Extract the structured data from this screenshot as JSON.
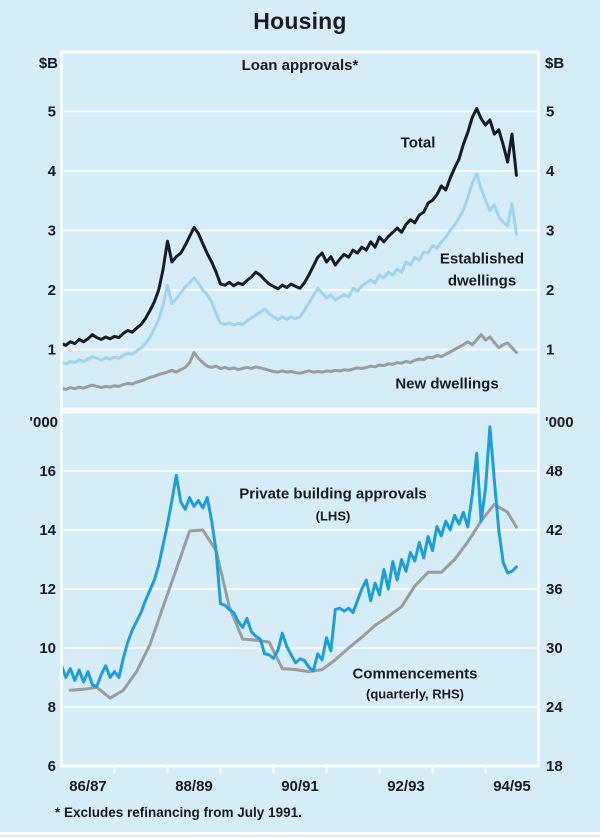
{
  "page": {
    "title": "Housing",
    "footnote": "* Excludes refinancing from July 1991.",
    "background": "#d6ecf7",
    "text_color": "#1a1a24"
  },
  "colors": {
    "total": "#1a1a24",
    "established": "#9fd4ec",
    "new_dwellings": "#9a9c9e",
    "approvals": "#1e9ed9",
    "commencements": "#9a9c9e",
    "grid": "#ffffff",
    "frame": "#ffffff"
  },
  "labels": {
    "total": "Total",
    "established_1": "Established",
    "established_2": "dwellings",
    "new_dwellings": "New dwellings",
    "approvals_1": "Private building approvals",
    "approvals_2": "(LHS)",
    "commencements_1": "Commencements",
    "commencements_2": "(quarterly, RHS)"
  },
  "x_axis": {
    "start": "Jul 1986",
    "months_span": 108,
    "tick_months": [
      12,
      24,
      36,
      48,
      60,
      72,
      84,
      96
    ],
    "labels": [
      {
        "text": "86/87",
        "month": 6
      },
      {
        "text": "88/89",
        "month": 30
      },
      {
        "text": "90/91",
        "month": 54
      },
      {
        "text": "92/93",
        "month": 78
      },
      {
        "text": "94/95",
        "month": 102
      }
    ]
  },
  "chart_data": [
    {
      "type": "line",
      "panel": "top",
      "title": "Loan approvals*",
      "unit_left": "$B",
      "unit_right": "$B",
      "ylim": [
        0,
        6
      ],
      "yticks": [
        1,
        2,
        3,
        4,
        5
      ],
      "grid": true,
      "x_start": "Jul 1986",
      "frequency": "monthly",
      "series": [
        {
          "name": "New dwellings",
          "color": "new_dwellings",
          "axis": "left",
          "values": [
            0.35,
            0.33,
            0.36,
            0.34,
            0.37,
            0.35,
            0.38,
            0.4,
            0.38,
            0.36,
            0.38,
            0.37,
            0.39,
            0.38,
            0.41,
            0.43,
            0.42,
            0.45,
            0.47,
            0.5,
            0.53,
            0.55,
            0.58,
            0.6,
            0.62,
            0.65,
            0.62,
            0.66,
            0.7,
            0.78,
            0.95,
            0.85,
            0.78,
            0.72,
            0.7,
            0.72,
            0.68,
            0.7,
            0.67,
            0.69,
            0.66,
            0.68,
            0.7,
            0.68,
            0.71,
            0.69,
            0.67,
            0.65,
            0.63,
            0.62,
            0.64,
            0.62,
            0.63,
            0.61,
            0.6,
            0.62,
            0.64,
            0.62,
            0.63,
            0.62,
            0.64,
            0.63,
            0.65,
            0.64,
            0.66,
            0.65,
            0.67,
            0.69,
            0.68,
            0.7,
            0.72,
            0.71,
            0.74,
            0.73,
            0.76,
            0.75,
            0.78,
            0.77,
            0.8,
            0.78,
            0.82,
            0.84,
            0.83,
            0.87,
            0.86,
            0.9,
            0.88,
            0.92,
            0.96,
            1.0,
            1.04,
            1.08,
            1.13,
            1.08,
            1.16,
            1.25,
            1.16,
            1.21,
            1.12,
            1.03,
            1.08,
            1.11,
            1.03,
            0.95
          ]
        },
        {
          "name": "Established dwellings",
          "color": "established",
          "axis": "left",
          "values": [
            0.78,
            0.76,
            0.8,
            0.78,
            0.83,
            0.8,
            0.84,
            0.88,
            0.85,
            0.82,
            0.86,
            0.84,
            0.87,
            0.85,
            0.9,
            0.94,
            0.92,
            0.98,
            1.02,
            1.1,
            1.2,
            1.35,
            1.5,
            1.75,
            2.08,
            1.77,
            1.85,
            1.95,
            2.05,
            2.12,
            2.2,
            2.12,
            2.0,
            1.92,
            1.8,
            1.6,
            1.44,
            1.42,
            1.45,
            1.41,
            1.44,
            1.42,
            1.48,
            1.53,
            1.58,
            1.63,
            1.68,
            1.6,
            1.55,
            1.5,
            1.55,
            1.51,
            1.55,
            1.52,
            1.55,
            1.66,
            1.78,
            1.9,
            2.03,
            1.95,
            1.87,
            1.92,
            1.83,
            1.88,
            1.92,
            1.88,
            2.03,
            1.98,
            2.07,
            2.12,
            2.17,
            2.12,
            2.25,
            2.2,
            2.3,
            2.25,
            2.35,
            2.3,
            2.47,
            2.42,
            2.55,
            2.5,
            2.64,
            2.62,
            2.75,
            2.7,
            2.81,
            2.89,
            3.0,
            3.09,
            3.21,
            3.35,
            3.55,
            3.8,
            3.95,
            3.7,
            3.51,
            3.34,
            3.43,
            3.23,
            3.14,
            3.08,
            3.45,
            2.94
          ]
        },
        {
          "name": "Total",
          "color": "total",
          "axis": "left",
          "values": [
            1.1,
            1.07,
            1.13,
            1.1,
            1.17,
            1.13,
            1.18,
            1.25,
            1.2,
            1.17,
            1.21,
            1.18,
            1.22,
            1.2,
            1.27,
            1.32,
            1.29,
            1.36,
            1.42,
            1.52,
            1.65,
            1.8,
            2.0,
            2.35,
            2.82,
            2.47,
            2.56,
            2.62,
            2.75,
            2.9,
            3.05,
            2.95,
            2.78,
            2.61,
            2.47,
            2.3,
            2.1,
            2.08,
            2.13,
            2.07,
            2.12,
            2.09,
            2.16,
            2.22,
            2.3,
            2.25,
            2.17,
            2.1,
            2.06,
            2.02,
            2.08,
            2.04,
            2.1,
            2.06,
            2.03,
            2.12,
            2.25,
            2.4,
            2.55,
            2.62,
            2.47,
            2.56,
            2.42,
            2.52,
            2.6,
            2.55,
            2.67,
            2.62,
            2.72,
            2.67,
            2.81,
            2.72,
            2.89,
            2.81,
            2.9,
            2.97,
            3.04,
            2.97,
            3.1,
            3.18,
            3.13,
            3.26,
            3.31,
            3.46,
            3.51,
            3.6,
            3.75,
            3.68,
            3.88,
            4.05,
            4.2,
            4.45,
            4.65,
            4.9,
            5.05,
            4.88,
            4.77,
            4.86,
            4.62,
            4.69,
            4.44,
            4.15,
            4.62,
            3.93
          ]
        }
      ]
    },
    {
      "type": "line",
      "panel": "bottom",
      "title": "",
      "unit_left": "'000",
      "unit_right": "'000",
      "ylim_left": [
        6,
        18
      ],
      "yticks_left": [
        16,
        14,
        12,
        10,
        8,
        6
      ],
      "ylim_right": [
        18,
        54
      ],
      "yticks_right": [
        48,
        42,
        36,
        30,
        24,
        18
      ],
      "grid": true,
      "x_start": "Jul 1986",
      "series": [
        {
          "name": "Commencements (quarterly, RHS)",
          "color": "commencements",
          "axis": "right",
          "frequency": "quarterly",
          "x_months": [
            2,
            5,
            8,
            11,
            14,
            17,
            20,
            23,
            26,
            29,
            32,
            35,
            38,
            41,
            44,
            47,
            50,
            53,
            56,
            59,
            62,
            65,
            68,
            71,
            74,
            77,
            80,
            83,
            86,
            89,
            92,
            95,
            98,
            101,
            103
          ],
          "values": [
            25.7,
            25.8,
            26.0,
            24.9,
            25.7,
            27.6,
            30.3,
            34.2,
            38.0,
            41.9,
            42.0,
            39.9,
            34.2,
            30.9,
            30.8,
            30.6,
            27.9,
            27.8,
            27.6,
            27.8,
            28.8,
            30.0,
            31.1,
            32.3,
            33.2,
            34.2,
            36.3,
            37.7,
            37.7,
            39.0,
            40.8,
            42.9,
            44.6,
            43.8,
            42.3
          ]
        },
        {
          "name": "Private building approvals (LHS)",
          "color": "approvals",
          "axis": "left",
          "frequency": "monthly",
          "values": [
            9.4,
            9.0,
            9.3,
            8.9,
            9.25,
            8.85,
            9.2,
            8.75,
            8.7,
            9.1,
            9.4,
            9.0,
            9.2,
            9.0,
            9.65,
            10.2,
            10.6,
            10.9,
            11.2,
            11.6,
            11.95,
            12.3,
            12.8,
            13.5,
            14.2,
            15.0,
            15.85,
            14.95,
            14.7,
            15.1,
            14.8,
            15.0,
            14.75,
            15.1,
            14.3,
            13.3,
            11.5,
            11.45,
            11.3,
            11.2,
            10.9,
            10.7,
            11.0,
            10.55,
            10.4,
            10.3,
            9.8,
            9.77,
            9.65,
            9.92,
            10.5,
            10.05,
            9.77,
            9.5,
            9.63,
            9.58,
            9.35,
            9.22,
            9.8,
            9.6,
            10.35,
            9.9,
            11.3,
            11.35,
            11.25,
            11.35,
            11.2,
            11.6,
            12.0,
            12.3,
            11.6,
            12.2,
            11.8,
            12.66,
            12.0,
            12.93,
            12.3,
            13.0,
            12.6,
            13.24,
            12.95,
            13.58,
            13.05,
            13.78,
            13.3,
            14.12,
            13.8,
            14.3,
            14.0,
            14.5,
            14.2,
            14.6,
            14.1,
            15.2,
            16.6,
            14.3,
            15.4,
            17.5,
            15.7,
            14.0,
            12.9,
            12.55,
            12.6,
            12.75
          ]
        }
      ]
    }
  ]
}
